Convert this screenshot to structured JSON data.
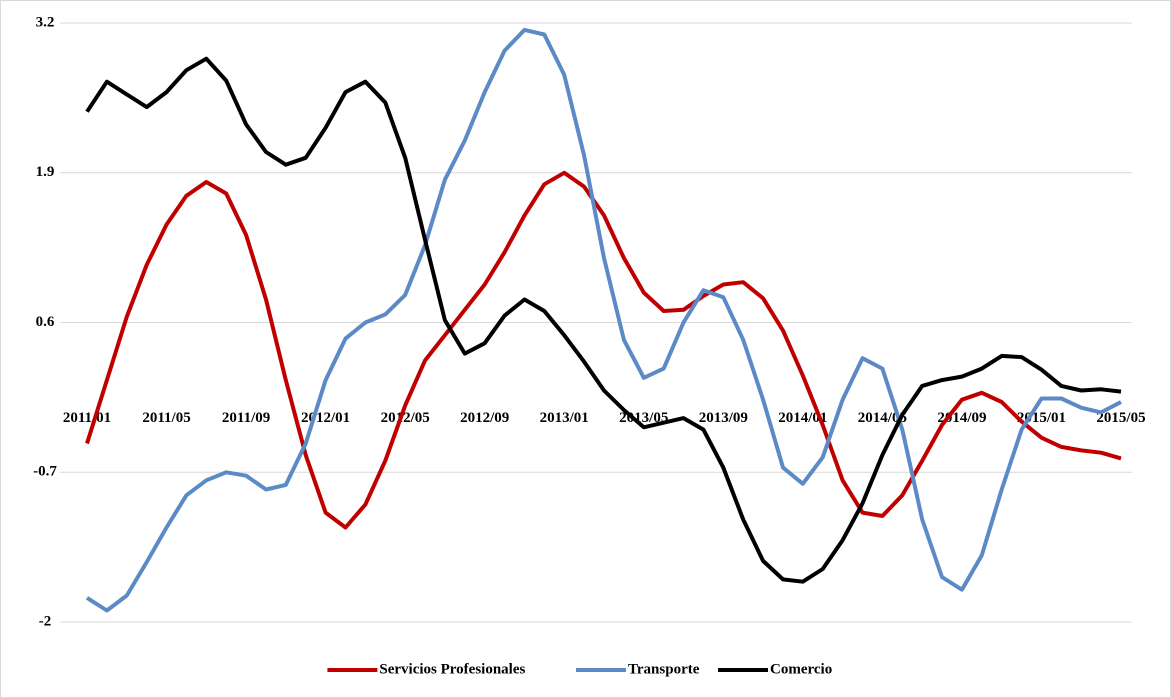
{
  "chart_data": {
    "type": "line",
    "categories": [
      "2011/01",
      null,
      null,
      null,
      "2011/05",
      null,
      null,
      null,
      "2011/09",
      null,
      null,
      null,
      "2012/01",
      null,
      null,
      null,
      "2012/05",
      null,
      null,
      null,
      "2012/09",
      null,
      null,
      null,
      "2013/01",
      null,
      null,
      null,
      "2013/05",
      null,
      null,
      null,
      "2013/09",
      null,
      null,
      null,
      "2014/01",
      null,
      null,
      null,
      "2014/05",
      null,
      null,
      null,
      "2014/09",
      null,
      null,
      null,
      "2015/01",
      null,
      null,
      null,
      "2015/05"
    ],
    "series": [
      {
        "name": "Servicios Profesionales",
        "color": "#c00000",
        "values": [
          -0.45,
          0.1,
          0.65,
          1.1,
          1.45,
          1.7,
          1.82,
          1.72,
          1.36,
          0.8,
          0.1,
          -0.55,
          -1.05,
          -1.18,
          -0.98,
          -0.6,
          -0.12,
          0.27,
          0.49,
          0.71,
          0.93,
          1.21,
          1.53,
          1.8,
          1.9,
          1.78,
          1.53,
          1.16,
          0.86,
          0.7,
          0.71,
          0.83,
          0.93,
          0.95,
          0.81,
          0.53,
          0.14,
          -0.29,
          -0.77,
          -1.05,
          -1.08,
          -0.9,
          -0.6,
          -0.29,
          -0.07,
          -0.01,
          -0.09,
          -0.26,
          -0.4,
          -0.48,
          -0.51,
          -0.53,
          -0.58
        ]
      },
      {
        "name": "Transporte",
        "color": "#5b8ac6",
        "values": [
          -1.79,
          -1.9,
          -1.77,
          -1.48,
          -1.18,
          -0.9,
          -0.77,
          -0.7,
          -0.73,
          -0.85,
          -0.81,
          -0.45,
          0.1,
          0.46,
          0.6,
          0.67,
          0.84,
          1.27,
          1.84,
          2.18,
          2.6,
          2.96,
          3.14,
          3.1,
          2.75,
          2.05,
          1.16,
          0.45,
          0.12,
          0.2,
          0.6,
          0.88,
          0.82,
          0.45,
          -0.07,
          -0.66,
          -0.8,
          -0.57,
          -0.07,
          0.29,
          0.2,
          -0.33,
          -1.11,
          -1.61,
          -1.72,
          -1.42,
          -0.85,
          -0.33,
          -0.06,
          -0.06,
          -0.14,
          -0.18,
          -0.09
        ]
      },
      {
        "name": "Comercio",
        "color": "#000000",
        "values": [
          2.43,
          2.69,
          2.58,
          2.47,
          2.6,
          2.79,
          2.89,
          2.7,
          2.32,
          2.08,
          1.97,
          2.03,
          2.29,
          2.6,
          2.69,
          2.51,
          2.03,
          1.32,
          0.62,
          0.33,
          0.42,
          0.66,
          0.8,
          0.7,
          0.49,
          0.26,
          0.01,
          -0.16,
          -0.31,
          -0.27,
          -0.23,
          -0.33,
          -0.66,
          -1.11,
          -1.47,
          -1.63,
          -1.65,
          -1.54,
          -1.29,
          -0.97,
          -0.55,
          -0.2,
          0.05,
          0.1,
          0.13,
          0.2,
          0.31,
          0.3,
          0.19,
          0.05,
          0.01,
          0.02,
          0
        ]
      }
    ],
    "ylim": [
      -2,
      3.2
    ],
    "yticks": [
      -2,
      -0.7,
      0.6,
      1.9,
      3.2
    ],
    "grid": true,
    "legend": "bottom"
  }
}
